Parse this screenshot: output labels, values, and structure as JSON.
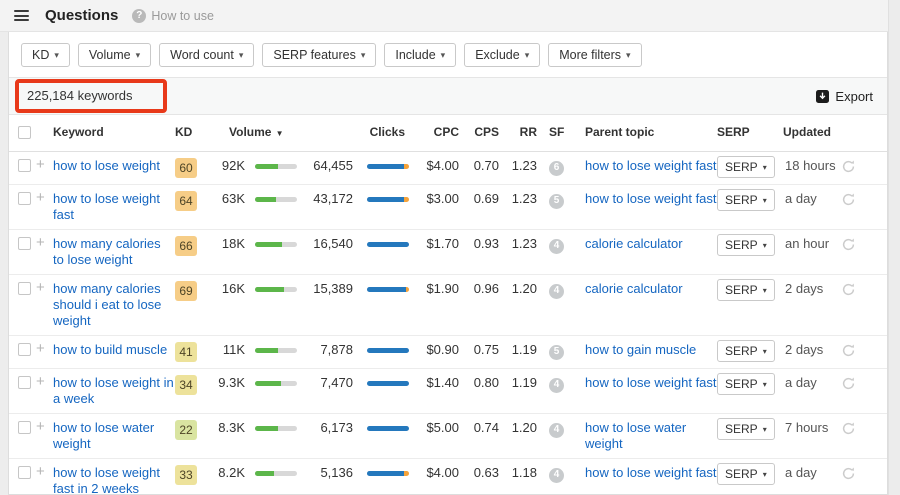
{
  "topbar": {
    "title": "Questions",
    "help_label": "How to use"
  },
  "icons": {
    "caret": "▾",
    "sort_caret": "▼",
    "plus": "+",
    "question": "?"
  },
  "colors": {
    "annotation_red": "#e8391a",
    "link_blue": "#1566c1",
    "kd_orange": "#f6cd87",
    "kd_yellow": "#ede29b",
    "kd_green": "#d9e4a1",
    "bar_green": "#5cb64a",
    "bar_blue": "#2478bd",
    "bar_orange": "#f5a33b"
  },
  "filters": [
    {
      "label": "KD"
    },
    {
      "label": "Volume"
    },
    {
      "label": "Word count"
    },
    {
      "label": "SERP features"
    },
    {
      "label": "Include"
    },
    {
      "label": "Exclude"
    },
    {
      "label": "More filters"
    }
  ],
  "countbar": {
    "count": "225,184 keywords",
    "export_label": "Export"
  },
  "table": {
    "columns": {
      "keyword": "Keyword",
      "kd": "KD",
      "volume": "Volume",
      "clicks": "Clicks",
      "cpc": "CPC",
      "cps": "CPS",
      "rr": "RR",
      "sf": "SF",
      "parent": "Parent topic",
      "serp": "SERP",
      "updated": "Updated"
    },
    "sorted_by": "Volume",
    "rows": [
      {
        "keyword": "how to lose weight",
        "kd": "60",
        "kd_tier": "orange",
        "volume": "92K",
        "vol_pct": 55,
        "clicks": "64,455",
        "clicks_blue_pct": 88,
        "clicks_orange": true,
        "cpc": "$4.00",
        "cps": "0.70",
        "rr": "1.23",
        "sf": "6",
        "parent": "how to lose weight fast",
        "serp_label": "SERP",
        "updated": "18 hours"
      },
      {
        "keyword": "how to lose weight fast",
        "kd": "64",
        "kd_tier": "orange",
        "volume": "63K",
        "vol_pct": 50,
        "clicks": "43,172",
        "clicks_blue_pct": 88,
        "clicks_orange": true,
        "cpc": "$3.00",
        "cps": "0.69",
        "rr": "1.23",
        "sf": "5",
        "parent": "how to lose weight fast",
        "serp_label": "SERP",
        "updated": "a day"
      },
      {
        "keyword": "how many calories to lose weight",
        "kd": "66",
        "kd_tier": "orange",
        "volume": "18K",
        "vol_pct": 65,
        "clicks": "16,540",
        "clicks_blue_pct": 100,
        "clicks_orange": false,
        "cpc": "$1.70",
        "cps": "0.93",
        "rr": "1.23",
        "sf": "4",
        "parent": "calorie calculator",
        "serp_label": "SERP",
        "updated": "an hour"
      },
      {
        "keyword": "how many calories should i eat to lose weight",
        "kd": "69",
        "kd_tier": "orange",
        "volume": "16K",
        "vol_pct": 70,
        "clicks": "15,389",
        "clicks_blue_pct": 92,
        "clicks_orange": true,
        "cpc": "$1.90",
        "cps": "0.96",
        "rr": "1.20",
        "sf": "4",
        "parent": "calorie calculator",
        "serp_label": "SERP",
        "updated": "2 days"
      },
      {
        "keyword": "how to build muscle",
        "kd": "41",
        "kd_tier": "yellow",
        "volume": "11K",
        "vol_pct": 55,
        "clicks": "7,878",
        "clicks_blue_pct": 100,
        "clicks_orange": false,
        "cpc": "$0.90",
        "cps": "0.75",
        "rr": "1.19",
        "sf": "5",
        "parent": "how to gain muscle",
        "serp_label": "SERP",
        "updated": "2 days"
      },
      {
        "keyword": "how to lose weight in a week",
        "kd": "34",
        "kd_tier": "yellow",
        "volume": "9.3K",
        "vol_pct": 62,
        "clicks": "7,470",
        "clicks_blue_pct": 100,
        "clicks_orange": false,
        "cpc": "$1.40",
        "cps": "0.80",
        "rr": "1.19",
        "sf": "4",
        "parent": "how to lose weight fast",
        "serp_label": "SERP",
        "updated": "a day"
      },
      {
        "keyword": "how to lose water weight",
        "kd": "22",
        "kd_tier": "green",
        "volume": "8.3K",
        "vol_pct": 55,
        "clicks": "6,173",
        "clicks_blue_pct": 100,
        "clicks_orange": false,
        "cpc": "$5.00",
        "cps": "0.74",
        "rr": "1.20",
        "sf": "4",
        "parent": "how to lose water weight",
        "serp_label": "SERP",
        "updated": "7 hours"
      },
      {
        "keyword": "how to lose weight fast in 2 weeks",
        "kd": "33",
        "kd_tier": "yellow",
        "volume": "8.2K",
        "vol_pct": 45,
        "clicks": "5,136",
        "clicks_blue_pct": 88,
        "clicks_orange": true,
        "cpc": "$4.00",
        "cps": "0.63",
        "rr": "1.18",
        "sf": "4",
        "parent": "how to lose weight fast",
        "serp_label": "SERP",
        "updated": "a day"
      }
    ]
  }
}
